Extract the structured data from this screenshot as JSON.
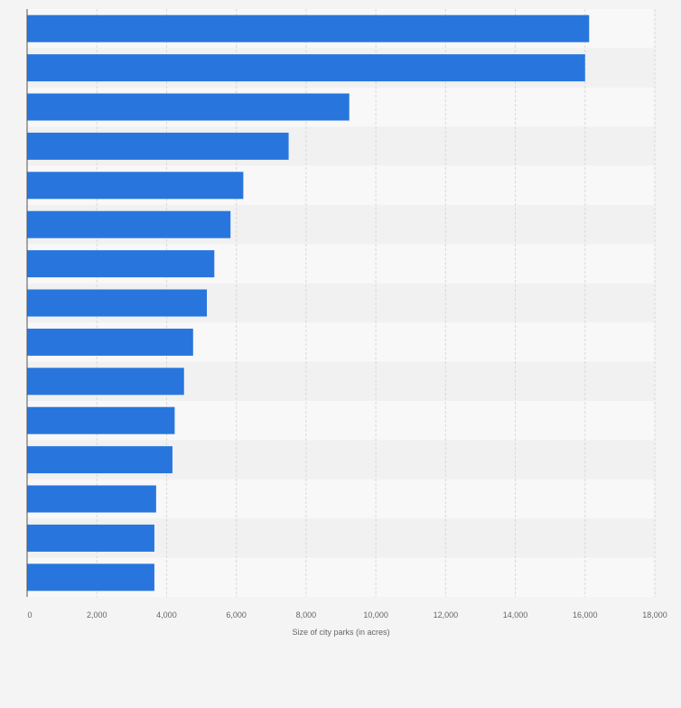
{
  "chart_data": {
    "type": "bar",
    "orientation": "horizontal",
    "title": "",
    "categories": [
      "",
      "",
      "",
      "",
      "",
      "",
      "",
      "",
      "",
      "",
      "",
      "",
      "",
      "",
      ""
    ],
    "values": [
      16117,
      16000,
      9239,
      7500,
      6200,
      5833,
      5369,
      5155,
      4760,
      4500,
      4232,
      4168,
      3700,
      3650,
      3650
    ],
    "xlabel": "Size of city parks (in acres)",
    "ylabel": "",
    "xlim": [
      0,
      18000
    ],
    "xticks": [
      0,
      2000,
      4000,
      6000,
      8000,
      10000,
      12000,
      14000,
      16000,
      18000
    ],
    "xtick_labels": [
      "0",
      "2,000",
      "4,000",
      "6,000",
      "8,000",
      "10,000",
      "12,000",
      "14,000",
      "16,000",
      "18,000"
    ],
    "grid": true,
    "legend": "none"
  },
  "colors": {
    "bar": "#2876dd",
    "background": "#f4f4f4",
    "band_light": "#f8f8f8",
    "band_dark": "#f1f1f1",
    "grid": "#d9d9d9",
    "axis": "#555555",
    "text": "#666666"
  }
}
